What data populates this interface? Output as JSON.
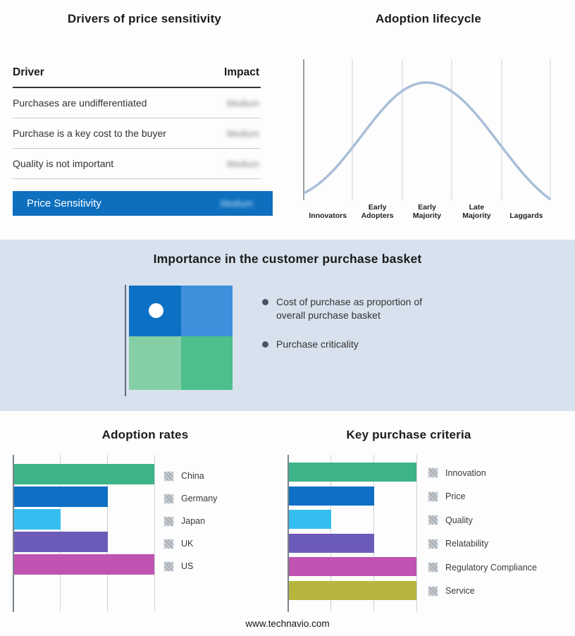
{
  "drivers_panel": {
    "title": "Drivers of price sensitivity",
    "columns": {
      "driver": "Driver",
      "impact": "Impact"
    },
    "rows": [
      {
        "driver": "Purchases are undifferentiated",
        "impact": "Medium"
      },
      {
        "driver": "Purchase is a key cost to the buyer",
        "impact": "Medium"
      },
      {
        "driver": "Quality is not important",
        "impact": "Medium"
      }
    ],
    "summary": {
      "label": "Price Sensitivity",
      "impact": "Medium",
      "bg": "#0d6fbe"
    }
  },
  "lifecycle_panel": {
    "title": "Adoption lifecycle",
    "stages": [
      "Innovators",
      "Early Adopters",
      "Early Majority",
      "Late Majority",
      "Laggards"
    ],
    "curve_color": "#a9bed8"
  },
  "basket_panel": {
    "title": "Importance in the customer purchase basket",
    "bullets": [
      "Cost of purchase as proportion of overall purchase basket",
      "Purchase criticality"
    ],
    "quadrants": {
      "top_left": "#0c70c4",
      "top_right": "#3e90dc",
      "bottom_left": "#85cfa6",
      "bottom_right": "#4dbf8c"
    }
  },
  "footer": "www.technavio.com",
  "chart_data": [
    {
      "type": "line",
      "title": "Adoption lifecycle",
      "x_categories": [
        "Innovators",
        "Early Adopters",
        "Early Majority",
        "Late Majority",
        "Laggards"
      ],
      "description": "Bell-shaped diffusion curve rising from Innovators, peaking at Early Majority, falling to Laggards",
      "color": "#a9bed8",
      "grid": true,
      "legend_position": "none"
    },
    {
      "type": "bar",
      "orientation": "horizontal",
      "title": "Adoption rates",
      "categories": [
        "China",
        "Germany",
        "Japan",
        "UK",
        "US"
      ],
      "values": [
        3,
        2,
        1,
        2,
        3
      ],
      "colors": [
        "#3cb487",
        "#0d6fc5",
        "#35bdf0",
        "#6c5ab8",
        "#c053b2"
      ],
      "xlim": [
        0,
        3
      ],
      "grid": true,
      "legend_position": "right"
    },
    {
      "type": "bar",
      "orientation": "horizontal",
      "title": "Key purchase criteria",
      "categories": [
        "Innovation",
        "Price",
        "Quality",
        "Relatability",
        "Regulatory Compliance",
        "Service"
      ],
      "values": [
        3,
        2,
        1,
        2,
        3,
        3
      ],
      "colors": [
        "#3cb487",
        "#0d6fc5",
        "#35bdf0",
        "#6c5ab8",
        "#c053b2",
        "#b6b63e"
      ],
      "xlim": [
        0,
        3
      ],
      "grid": true,
      "legend_position": "right"
    }
  ]
}
